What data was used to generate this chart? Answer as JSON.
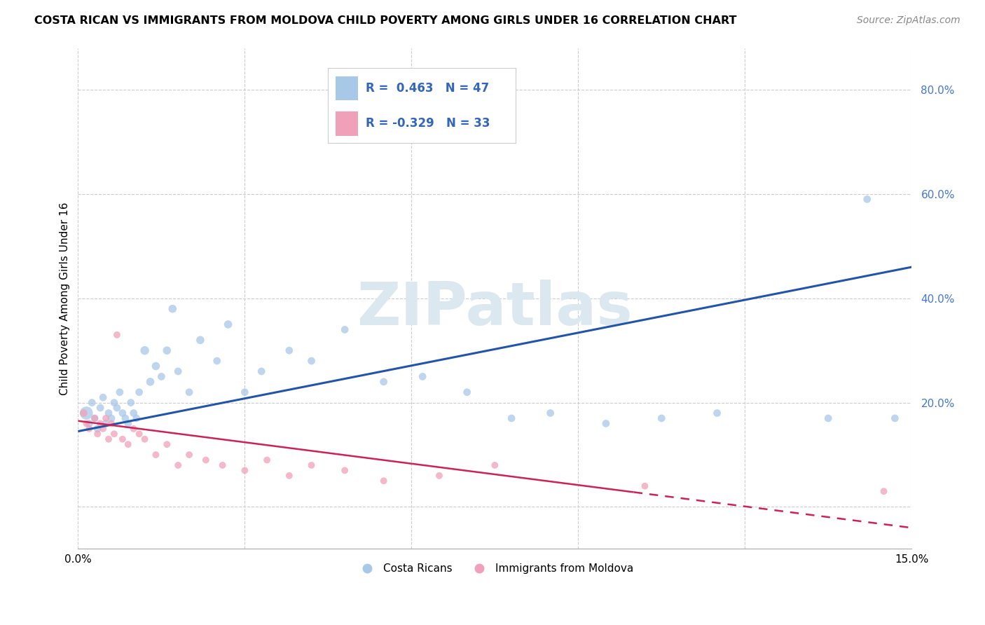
{
  "title": "COSTA RICAN VS IMMIGRANTS FROM MOLDOVA CHILD POVERTY AMONG GIRLS UNDER 16 CORRELATION CHART",
  "source": "Source: ZipAtlas.com",
  "ylabel": "Child Poverty Among Girls Under 16",
  "xlim": [
    0.0,
    15.0
  ],
  "ylim": [
    -8.0,
    88.0
  ],
  "blue_R": 0.463,
  "blue_N": 47,
  "pink_R": -0.329,
  "pink_N": 33,
  "blue_color": "#a8c8e8",
  "pink_color": "#f0a0b8",
  "blue_line_color": "#2255aa",
  "pink_line_color": "#cc2255",
  "legend_blue_color": "#a8c8e8",
  "legend_pink_color": "#f0a0b8",
  "watermark_color": "#dce8f0",
  "blue_scatter_x": [
    0.15,
    0.2,
    0.25,
    0.3,
    0.35,
    0.4,
    0.45,
    0.5,
    0.55,
    0.6,
    0.65,
    0.7,
    0.75,
    0.8,
    0.85,
    0.9,
    0.95,
    1.0,
    1.05,
    1.1,
    1.2,
    1.3,
    1.4,
    1.5,
    1.6,
    1.7,
    1.8,
    2.0,
    2.2,
    2.5,
    2.7,
    3.0,
    3.3,
    3.8,
    4.2,
    4.8,
    5.5,
    6.2,
    7.0,
    7.8,
    8.5,
    9.5,
    10.5,
    11.5,
    13.5,
    14.2,
    14.7
  ],
  "blue_scatter_y": [
    18,
    16,
    20,
    17,
    15,
    19,
    21,
    16,
    18,
    17,
    20,
    19,
    22,
    18,
    17,
    16,
    20,
    18,
    17,
    22,
    30,
    24,
    27,
    25,
    30,
    38,
    26,
    22,
    32,
    28,
    35,
    22,
    26,
    30,
    28,
    34,
    24,
    25,
    22,
    17,
    18,
    16,
    17,
    18,
    17,
    59,
    17
  ],
  "blue_scatter_size": [
    180,
    60,
    60,
    60,
    60,
    60,
    60,
    60,
    60,
    60,
    60,
    60,
    60,
    60,
    60,
    60,
    60,
    60,
    60,
    60,
    80,
    70,
    70,
    60,
    70,
    70,
    60,
    60,
    70,
    60,
    70,
    60,
    60,
    60,
    60,
    60,
    60,
    60,
    60,
    60,
    60,
    60,
    60,
    60,
    60,
    60,
    60
  ],
  "pink_scatter_x": [
    0.1,
    0.15,
    0.2,
    0.3,
    0.35,
    0.4,
    0.45,
    0.5,
    0.55,
    0.6,
    0.65,
    0.7,
    0.8,
    0.9,
    1.0,
    1.1,
    1.2,
    1.4,
    1.6,
    1.8,
    2.0,
    2.3,
    2.6,
    3.0,
    3.4,
    3.8,
    4.2,
    4.8,
    5.5,
    6.5,
    7.5,
    10.2,
    14.5
  ],
  "pink_scatter_y": [
    18,
    16,
    15,
    17,
    14,
    16,
    15,
    17,
    13,
    16,
    14,
    33,
    13,
    12,
    15,
    14,
    13,
    10,
    12,
    8,
    10,
    9,
    8,
    7,
    9,
    6,
    8,
    7,
    5,
    6,
    8,
    4,
    3
  ],
  "pink_scatter_size": [
    60,
    50,
    50,
    50,
    50,
    50,
    50,
    50,
    50,
    50,
    50,
    50,
    50,
    50,
    50,
    50,
    50,
    50,
    50,
    50,
    50,
    50,
    50,
    50,
    50,
    50,
    50,
    50,
    50,
    50,
    50,
    50,
    50
  ],
  "blue_line_x0": 0.0,
  "blue_line_y0": 14.5,
  "blue_line_x1": 15.0,
  "blue_line_y1": 46.0,
  "pink_line_x0": 0.0,
  "pink_line_y0": 16.5,
  "pink_line_x1": 15.0,
  "pink_line_y1": -4.0,
  "pink_dashed_start": 10.0
}
